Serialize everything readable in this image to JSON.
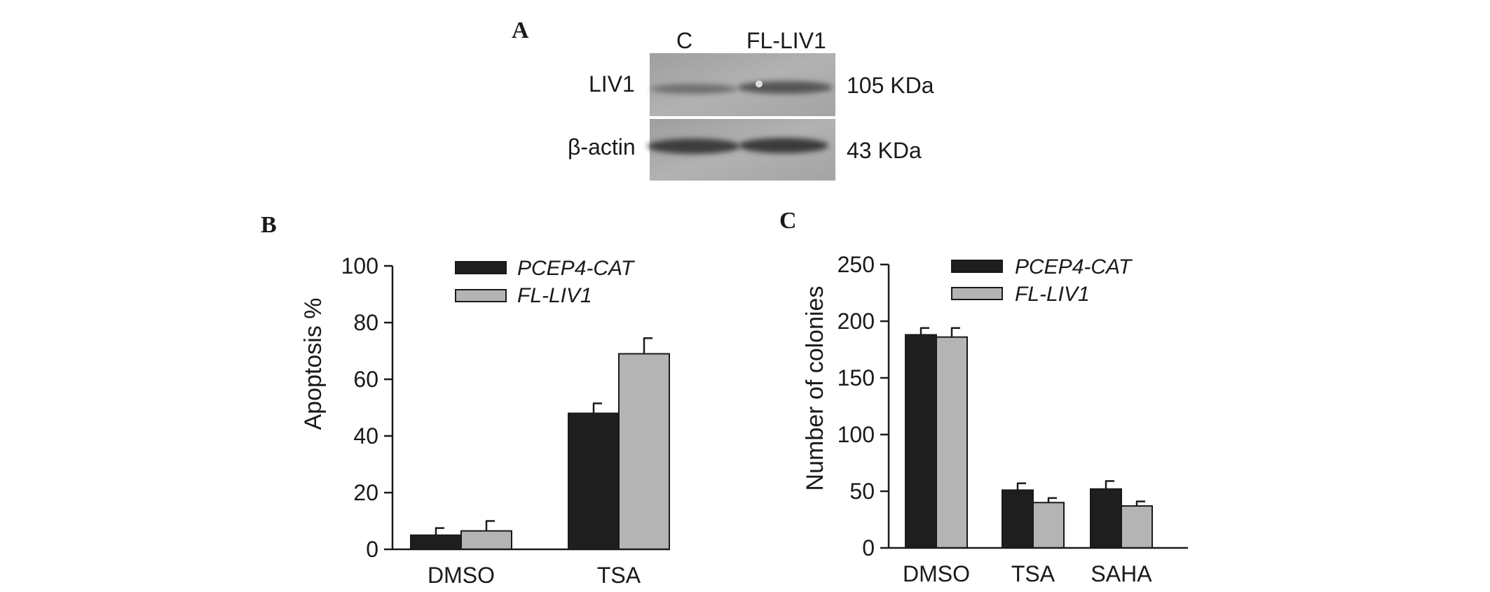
{
  "panels": {
    "a": "A",
    "b": "B",
    "c": "C"
  },
  "blot": {
    "lane_labels": [
      "C",
      "FL-LIV1"
    ],
    "row_labels": [
      "LIV1",
      "β-actin"
    ],
    "sizes": [
      "105 KDa",
      "43 KDa"
    ]
  },
  "colors": {
    "series1": "#1e1e1e",
    "series2": "#b4b4b4",
    "axis": "#1a1a1a",
    "blot_bg": "#a9a9a9"
  },
  "chart_data": [
    {
      "type": "bar",
      "panel": "B",
      "categories": [
        "DMSO",
        "TSA"
      ],
      "series": [
        {
          "name": "PCEP4-CAT",
          "values": [
            5,
            48
          ],
          "errors": [
            2.5,
            3.5
          ]
        },
        {
          "name": "FL-LIV1",
          "values": [
            6.5,
            69
          ],
          "errors": [
            3.5,
            5.5
          ]
        }
      ],
      "ylabel": "Apoptosis %",
      "ylim": [
        0,
        100
      ],
      "yticks": [
        0,
        20,
        40,
        60,
        80,
        100
      ],
      "legend": "top"
    },
    {
      "type": "bar",
      "panel": "C",
      "categories": [
        "DMSO",
        "TSA",
        "SAHA"
      ],
      "series": [
        {
          "name": "PCEP4-CAT",
          "values": [
            188,
            51,
            52
          ],
          "errors": [
            6,
            6,
            7
          ]
        },
        {
          "name": "FL-LIV1",
          "values": [
            186,
            40,
            37
          ],
          "errors": [
            8,
            4,
            4
          ]
        }
      ],
      "ylabel": "Number of colonies",
      "ylim": [
        0,
        250
      ],
      "yticks": [
        0,
        50,
        100,
        150,
        200,
        250
      ],
      "legend": "top"
    }
  ]
}
